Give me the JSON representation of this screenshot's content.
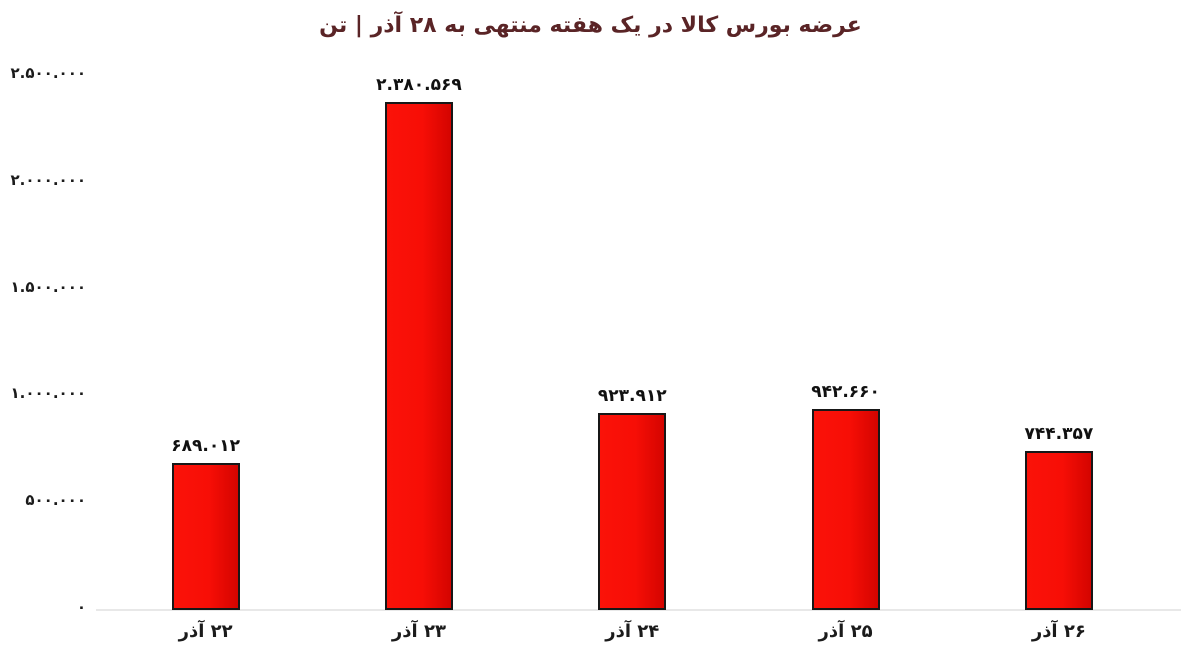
{
  "chart_data": {
    "type": "bar",
    "title": "عرضه بورس کالا در یک هفته منتهی به ۲۸ آذر | تن",
    "categories": [
      "۲۲ آذر",
      "۲۳ آذر",
      "۲۴ آذر",
      "۲۵ آذر",
      "۲۶ آذر"
    ],
    "values": [
      689012,
      2380569,
      923912,
      942660,
      744357
    ],
    "value_labels": [
      "۶۸۹.۰۱۲",
      "۲.۳۸۰.۵۶۹",
      "۹۲۳.۹۱۲",
      "۹۴۲.۶۶۰",
      "۷۴۴.۳۵۷"
    ],
    "y_ticks": [
      {
        "value": 2500000,
        "label": "۲.۵۰۰.۰۰۰"
      },
      {
        "value": 2000000,
        "label": "۲.۰۰۰.۰۰۰"
      },
      {
        "value": 1500000,
        "label": "۱.۵۰۰.۰۰۰"
      },
      {
        "value": 1000000,
        "label": "۱.۰۰۰.۰۰۰"
      },
      {
        "value": 500000,
        "label": "۵۰۰.۰۰۰"
      },
      {
        "value": 0,
        "label": "۰"
      }
    ],
    "ylim": [
      0,
      2500000
    ],
    "xlabel": "",
    "ylabel": "",
    "grid": false,
    "legend": "none",
    "bar_color": "#fb1209",
    "bar_color_dark": "#d40400",
    "bar_border_color": "#171717",
    "title_color": "#5a2426",
    "axis_line_color": "#e8e8e8",
    "text_color": "#1b1b1b",
    "background_color": "#ffffff"
  }
}
